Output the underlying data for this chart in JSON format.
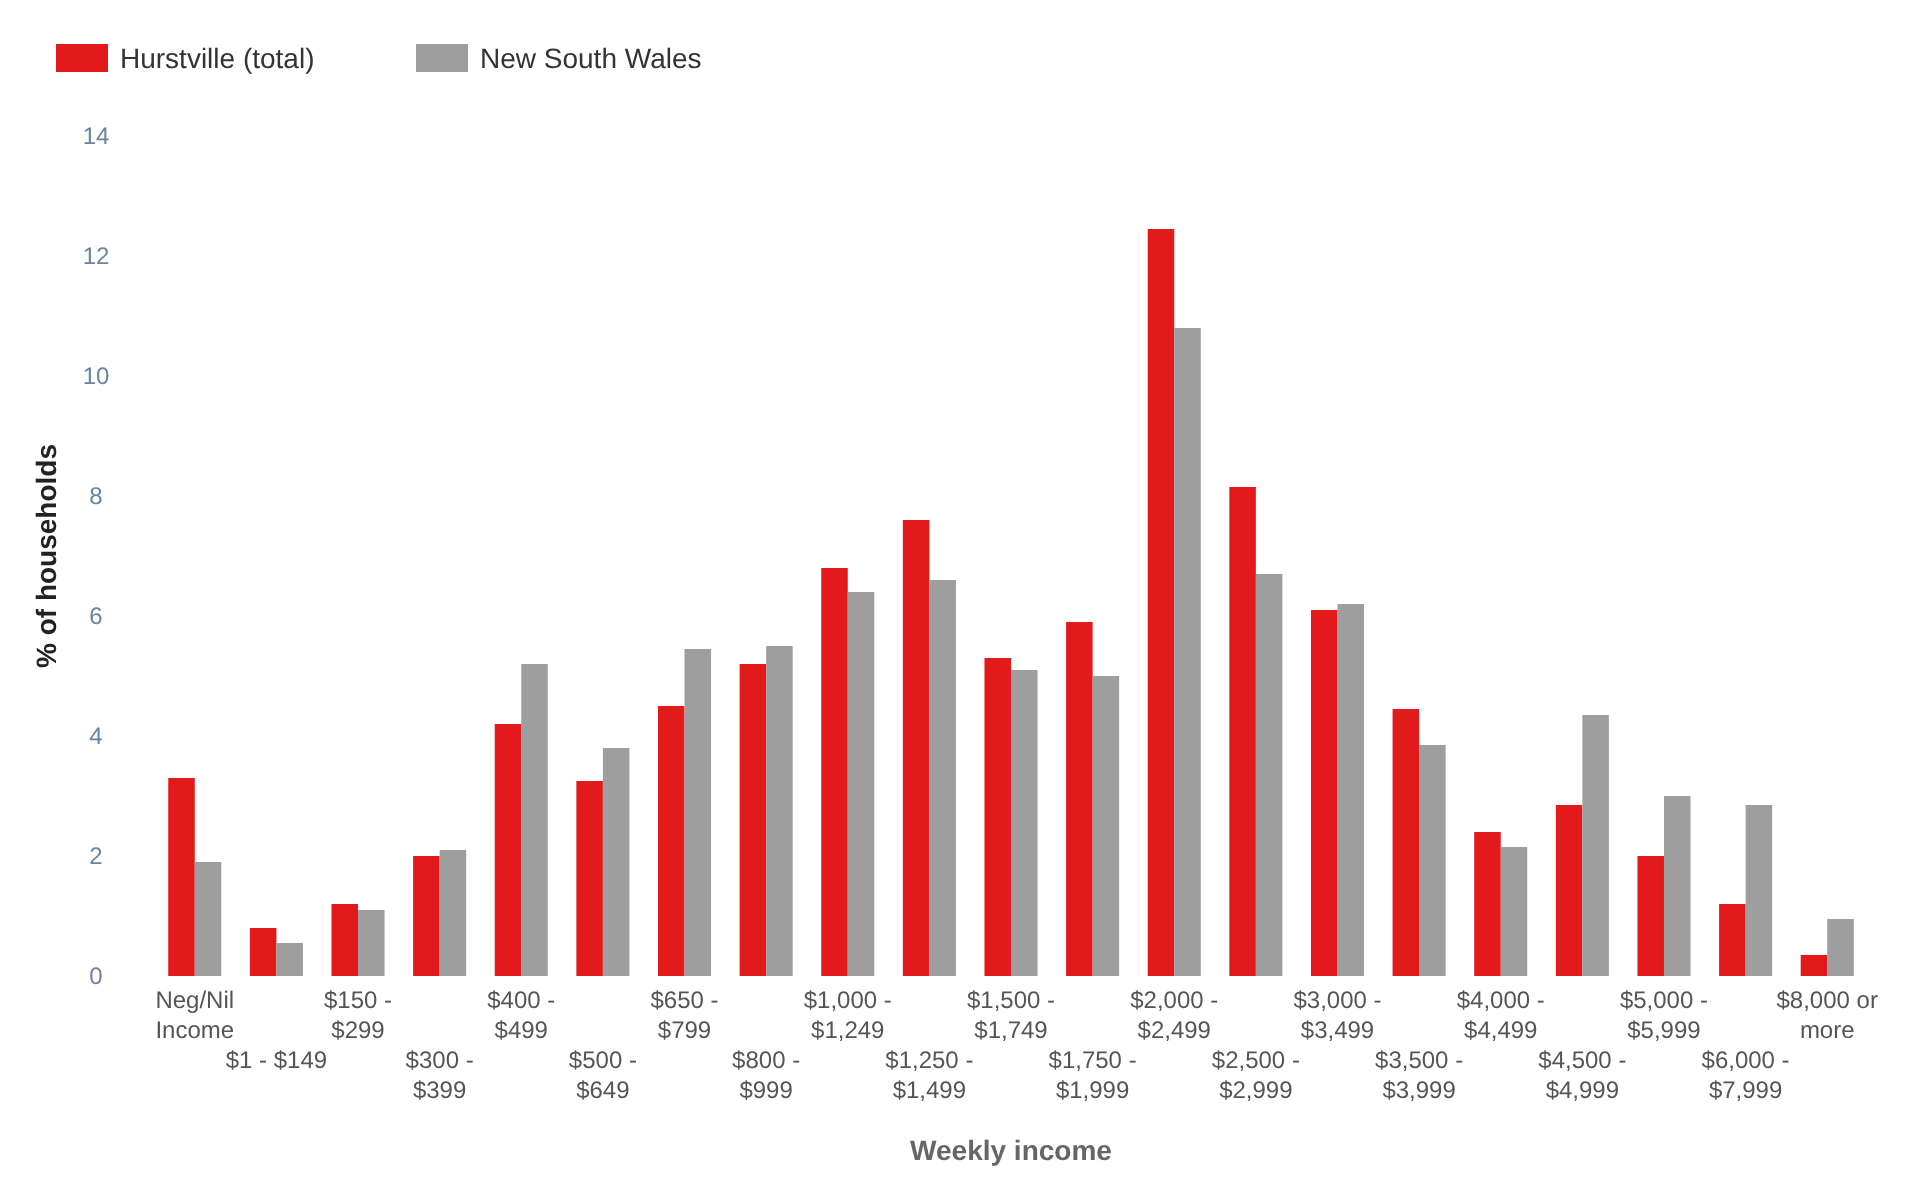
{
  "chart_data": {
    "type": "bar",
    "xlabel": "Weekly income",
    "ylabel": "% of households",
    "categories": [
      "Neg/Nil\nIncome",
      "$1 - $149",
      "$150 -\n$299",
      "$300 -\n$399",
      "$400 -\n$499",
      "$500 -\n$649",
      "$650 -\n$799",
      "$800 -\n$999",
      "$1,000 -\n$1,249",
      "$1,250 -\n$1,499",
      "$1,500 -\n$1,749",
      "$1,750 -\n$1,999",
      "$2,000 -\n$2,499",
      "$2,500 -\n$2,999",
      "$3,000 -\n$3,499",
      "$3,500 -\n$3,999",
      "$4,000 -\n$4,499",
      "$4,500 -\n$4,999",
      "$5,000 -\n$5,999",
      "$6,000 -\n$7,999",
      "$8,000 or\nmore"
    ],
    "series": [
      {
        "name": "Hurstville (total)",
        "color": "#e31a1c",
        "values": [
          3.3,
          0.8,
          1.2,
          2.0,
          4.2,
          3.25,
          4.5,
          5.2,
          6.8,
          7.6,
          5.3,
          5.9,
          12.45,
          8.15,
          6.1,
          4.45,
          2.4,
          2.85,
          2.0,
          1.2,
          0.35
        ]
      },
      {
        "name": "New South Wales",
        "color": "#9e9e9e",
        "values": [
          1.9,
          0.55,
          1.1,
          2.1,
          5.2,
          3.8,
          5.45,
          5.5,
          6.4,
          6.6,
          5.1,
          5.0,
          10.8,
          6.7,
          6.2,
          3.85,
          2.15,
          4.35,
          3.0,
          2.85,
          0.95
        ]
      }
    ],
    "ylim": [
      0,
      14
    ],
    "yticks": [
      0,
      2,
      4,
      6,
      8,
      10,
      12,
      14
    ],
    "grid": false,
    "legend": "top left"
  }
}
